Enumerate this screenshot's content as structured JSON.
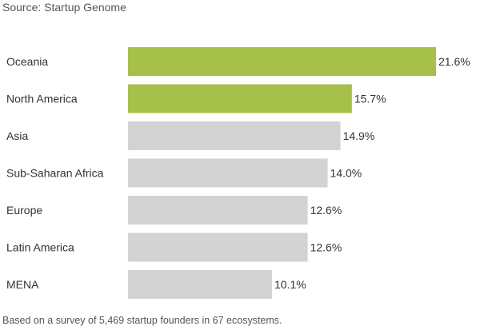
{
  "header": {
    "source": "Source: Startup Genome"
  },
  "footer": {
    "note": "Based on a survey of 5,469 startup founders in 67 ecosystems."
  },
  "colors": {
    "highlight": "#a6c04a",
    "default": "#d3d3d3"
  },
  "chart_data": {
    "type": "bar",
    "orientation": "horizontal",
    "categories": [
      "Oceania",
      "North America",
      "Asia",
      "Sub-Saharan Africa",
      "Europe",
      "Latin America",
      "MENA"
    ],
    "values": [
      21.6,
      15.7,
      14.9,
      14.0,
      12.6,
      12.6,
      10.1
    ],
    "value_labels": [
      "21.6%",
      "15.7%",
      "14.9%",
      "14.0%",
      "12.6%",
      "12.6%",
      "10.1%"
    ],
    "highlighted": [
      true,
      true,
      false,
      false,
      false,
      false,
      false
    ],
    "unit": "%",
    "xlim": [
      0,
      21.6
    ],
    "title": "",
    "xlabel": "",
    "ylabel": "",
    "grid": false,
    "legend": "none"
  }
}
